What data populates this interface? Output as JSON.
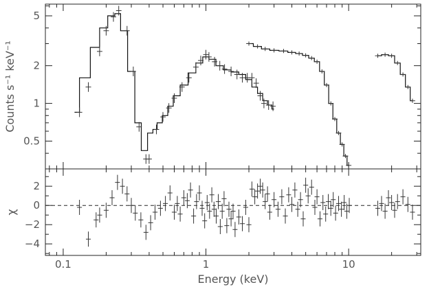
{
  "chart_data": [
    {
      "type": "line",
      "panel": "spectrum",
      "ylabel": "Counts s⁻¹ keV⁻¹",
      "xscale": "log",
      "yscale": "log",
      "xlim": [
        0.075,
        32
      ],
      "ylim": [
        0.3,
        6.2
      ],
      "yticks": [
        {
          "value": 0.5,
          "label": "0.5"
        },
        {
          "value": 1,
          "label": "1"
        },
        {
          "value": 2,
          "label": "2"
        },
        {
          "value": 5,
          "label": "5"
        }
      ],
      "series": [
        {
          "model_step": [
            [
              0.12,
              0.85
            ],
            [
              0.14,
              1.6
            ],
            [
              0.17,
              2.8
            ],
            [
              0.19,
              4.0
            ],
            [
              0.22,
              5.0
            ],
            [
              0.24,
              5.2
            ],
            [
              0.265,
              3.8
            ],
            [
              0.3,
              1.8
            ],
            [
              0.335,
              0.7
            ],
            [
              0.37,
              0.42
            ],
            [
              0.41,
              0.58
            ],
            [
              0.44,
              0.62
            ],
            [
              0.47,
              0.7
            ],
            [
              0.52,
              0.8
            ],
            [
              0.56,
              0.95
            ],
            [
              0.62,
              1.15
            ],
            [
              0.7,
              1.4
            ],
            [
              0.8,
              1.75
            ],
            [
              0.9,
              2.1
            ],
            [
              1.0,
              2.35
            ],
            [
              1.1,
              2.25
            ],
            [
              1.25,
              2.0
            ],
            [
              1.4,
              1.85
            ],
            [
              1.6,
              1.78
            ],
            [
              1.8,
              1.7
            ],
            [
              2.0,
              1.55
            ],
            [
              2.2,
              1.35
            ],
            [
              2.4,
              1.2
            ],
            [
              2.6,
              1.05
            ],
            [
              2.8,
              0.97
            ],
            [
              3.0,
              0.9
            ]
          ],
          "data_points": [
            [
              0.13,
              0.85
            ],
            [
              0.15,
              1.35
            ],
            [
              0.18,
              2.6
            ],
            [
              0.2,
              3.8
            ],
            [
              0.225,
              4.9
            ],
            [
              0.245,
              5.5
            ],
            [
              0.28,
              3.8
            ],
            [
              0.31,
              1.8
            ],
            [
              0.34,
              0.65
            ],
            [
              0.38,
              0.36
            ],
            [
              0.4,
              0.36
            ],
            [
              0.45,
              0.62
            ],
            [
              0.5,
              0.78
            ],
            [
              0.55,
              0.92
            ],
            [
              0.6,
              1.1
            ],
            [
              0.68,
              1.35
            ],
            [
              0.76,
              1.6
            ],
            [
              0.85,
              1.95
            ],
            [
              0.92,
              2.2
            ],
            [
              1.0,
              2.45
            ],
            [
              1.05,
              2.35
            ],
            [
              1.15,
              2.15
            ],
            [
              1.25,
              2.0
            ],
            [
              1.35,
              1.88
            ],
            [
              1.5,
              1.8
            ],
            [
              1.65,
              1.7
            ],
            [
              1.8,
              1.6
            ],
            [
              1.95,
              1.6
            ],
            [
              2.1,
              1.6
            ],
            [
              2.25,
              1.45
            ],
            [
              2.4,
              1.15
            ],
            [
              2.55,
              1.0
            ],
            [
              2.75,
              0.97
            ],
            [
              2.95,
              0.95
            ]
          ]
        },
        {
          "model_step": [
            [
              2.0,
              3.0
            ],
            [
              2.3,
              2.85
            ],
            [
              2.6,
              2.72
            ],
            [
              3.0,
              2.65
            ],
            [
              3.5,
              2.62
            ],
            [
              4.0,
              2.55
            ],
            [
              4.5,
              2.5
            ],
            [
              5.0,
              2.42
            ],
            [
              5.5,
              2.3
            ],
            [
              6.0,
              2.15
            ],
            [
              6.5,
              1.8
            ],
            [
              7.0,
              1.4
            ],
            [
              7.5,
              1.0
            ],
            [
              8.0,
              0.75
            ],
            [
              8.5,
              0.58
            ],
            [
              9.0,
              0.47
            ],
            [
              9.5,
              0.38
            ],
            [
              10.0,
              0.32
            ]
          ],
          "data_points": [
            [
              2.0,
              3.0
            ],
            [
              2.3,
              2.85
            ],
            [
              2.6,
              2.72
            ],
            [
              3.0,
              2.65
            ],
            [
              3.5,
              2.62
            ],
            [
              4.0,
              2.55
            ],
            [
              4.5,
              2.5
            ],
            [
              5.0,
              2.42
            ],
            [
              5.5,
              2.3
            ],
            [
              6.0,
              2.15
            ],
            [
              6.5,
              1.8
            ],
            [
              7.0,
              1.4
            ],
            [
              7.5,
              1.0
            ],
            [
              8.0,
              0.75
            ],
            [
              8.5,
              0.58
            ],
            [
              9.0,
              0.47
            ],
            [
              9.5,
              0.38
            ],
            [
              10.0,
              0.32
            ]
          ]
        },
        {
          "model_step": [
            [
              16,
              2.4
            ],
            [
              18,
              2.45
            ],
            [
              20,
              2.4
            ],
            [
              22,
              2.1
            ],
            [
              24,
              1.7
            ],
            [
              26,
              1.35
            ],
            [
              28,
              1.05
            ]
          ],
          "data_points": [
            [
              16,
              2.4
            ],
            [
              18,
              2.45
            ],
            [
              20,
              2.4
            ],
            [
              22,
              2.1
            ],
            [
              24,
              1.7
            ],
            [
              26,
              1.35
            ],
            [
              28,
              1.05
            ]
          ]
        }
      ]
    },
    {
      "type": "scatter",
      "panel": "residuals",
      "xlabel": "Energy (keV)",
      "ylabel": "χ",
      "xscale": "log",
      "xlim": [
        0.075,
        32
      ],
      "ylim": [
        -5.2,
        3.8
      ],
      "reference_line": 0,
      "yticks": [
        {
          "value": -4,
          "label": "−4"
        },
        {
          "value": -2,
          "label": "−2"
        },
        {
          "value": 0,
          "label": "0"
        },
        {
          "value": 2,
          "label": "2"
        }
      ],
      "xticks": [
        {
          "value": 0.1,
          "label": "0.1"
        },
        {
          "value": 1,
          "label": "1"
        },
        {
          "value": 10,
          "label": "10"
        }
      ],
      "points": [
        [
          0.13,
          -0.2
        ],
        [
          0.15,
          -3.5
        ],
        [
          0.17,
          -1.5
        ],
        [
          0.18,
          -1.0
        ],
        [
          0.2,
          -0.5
        ],
        [
          0.22,
          0.8
        ],
        [
          0.24,
          2.4
        ],
        [
          0.26,
          2.0
        ],
        [
          0.28,
          1.2
        ],
        [
          0.3,
          0.0
        ],
        [
          0.32,
          -0.8
        ],
        [
          0.35,
          -1.5
        ],
        [
          0.38,
          -2.8
        ],
        [
          0.41,
          -1.8
        ],
        [
          0.44,
          -0.7
        ],
        [
          0.48,
          -0.3
        ],
        [
          0.52,
          0.2
        ],
        [
          0.56,
          1.3
        ],
        [
          0.6,
          -0.7
        ],
        [
          0.63,
          0.2
        ],
        [
          0.66,
          -0.9
        ],
        [
          0.7,
          0.8
        ],
        [
          0.74,
          0.5
        ],
        [
          0.78,
          1.6
        ],
        [
          0.82,
          -1.1
        ],
        [
          0.86,
          0.4
        ],
        [
          0.9,
          1.3
        ],
        [
          0.94,
          -0.3
        ],
        [
          0.98,
          -1.6
        ],
        [
          1.02,
          0.3
        ],
        [
          1.06,
          -0.6
        ],
        [
          1.1,
          1.1
        ],
        [
          1.14,
          -0.4
        ],
        [
          1.18,
          -1.1
        ],
        [
          1.22,
          0.4
        ],
        [
          1.26,
          -2.2
        ],
        [
          1.3,
          -0.6
        ],
        [
          1.34,
          0.7
        ],
        [
          1.4,
          -2.1
        ],
        [
          1.45,
          -0.4
        ],
        [
          1.5,
          -1.4
        ],
        [
          1.55,
          -0.6
        ],
        [
          1.6,
          -2.5
        ],
        [
          1.7,
          -1.2
        ],
        [
          1.8,
          -1.9
        ],
        [
          1.9,
          -0.2
        ],
        [
          2.0,
          -2.0
        ],
        [
          2.1,
          1.7
        ],
        [
          2.2,
          0.9
        ],
        [
          2.3,
          1.5
        ],
        [
          2.4,
          2.0
        ],
        [
          2.5,
          1.6
        ],
        [
          2.6,
          0.4
        ],
        [
          2.7,
          1.2
        ],
        [
          2.8,
          -0.7
        ],
        [
          3.0,
          0.6
        ],
        [
          3.2,
          -0.4
        ],
        [
          3.4,
          0.9
        ],
        [
          3.6,
          -1.1
        ],
        [
          3.8,
          1.1
        ],
        [
          4.0,
          0.1
        ],
        [
          4.2,
          1.6
        ],
        [
          4.4,
          -0.4
        ],
        [
          4.6,
          0.6
        ],
        [
          4.8,
          -1.4
        ],
        [
          5.0,
          2.1
        ],
        [
          5.2,
          1.0
        ],
        [
          5.5,
          1.9
        ],
        [
          5.8,
          -0.2
        ],
        [
          6.0,
          0.9
        ],
        [
          6.3,
          -1.4
        ],
        [
          6.6,
          0.3
        ],
        [
          6.9,
          -0.9
        ],
        [
          7.2,
          0.4
        ],
        [
          7.5,
          -0.3
        ],
        [
          7.8,
          0.6
        ],
        [
          8.1,
          -0.8
        ],
        [
          8.5,
          0.2
        ],
        [
          8.9,
          -0.4
        ],
        [
          9.3,
          0.3
        ],
        [
          9.7,
          -0.6
        ],
        [
          10.1,
          0.0
        ],
        [
          16,
          -0.3
        ],
        [
          17,
          0.2
        ],
        [
          18,
          -0.6
        ],
        [
          19,
          0.8
        ],
        [
          20,
          0.3
        ],
        [
          21,
          -0.5
        ],
        [
          22,
          0.4
        ],
        [
          24,
          0.9
        ],
        [
          26,
          0.1
        ],
        [
          28,
          -0.7
        ]
      ]
    }
  ]
}
